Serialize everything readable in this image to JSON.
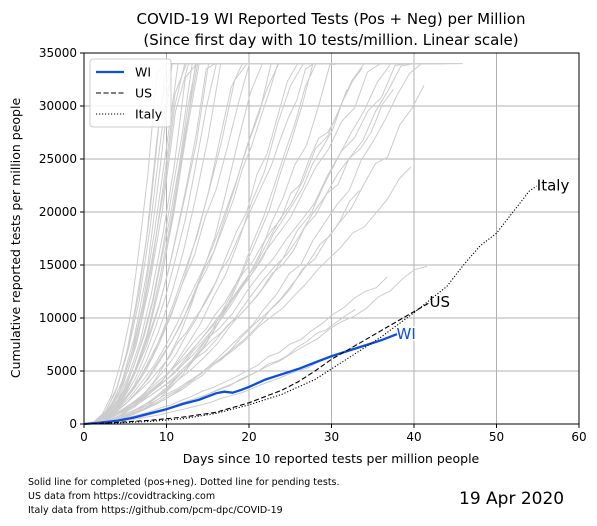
{
  "chart_data": {
    "type": "line",
    "title": [
      "COVID-19 WI Reported Tests (Pos + Neg) per Million",
      "(Since first day with 10 tests/million. Linear scale)"
    ],
    "xlabel": "Days since 10 reported tests per million people",
    "ylabel": "Cumulative reported tests per million people",
    "xlim": [
      0,
      60
    ],
    "ylim": [
      0,
      35000
    ],
    "xticks": [
      0,
      10,
      20,
      30,
      40,
      50,
      60
    ],
    "yticks": [
      0,
      5000,
      10000,
      15000,
      20000,
      25000,
      30000,
      35000
    ],
    "grid": true,
    "legend_position": "top-left",
    "series": [
      {
        "name": "WI",
        "style": "solid",
        "color": "#0b4fe0",
        "end_label": "WI",
        "x": [
          0,
          2,
          4,
          6,
          8,
          10,
          12,
          14,
          16,
          17,
          18,
          19,
          20,
          22,
          24,
          26,
          28,
          30,
          32,
          34,
          36,
          38
        ],
        "y": [
          0,
          120,
          300,
          600,
          1000,
          1400,
          1900,
          2300,
          2900,
          3050,
          2950,
          3200,
          3500,
          4200,
          4700,
          5200,
          5800,
          6400,
          6900,
          7400,
          7900,
          8500
        ]
      },
      {
        "name": "US",
        "style": "dashed",
        "color": "#000000",
        "end_label": "US",
        "x": [
          0,
          4,
          8,
          12,
          16,
          20,
          24,
          26,
          28,
          30,
          32,
          34,
          36,
          38,
          40,
          42
        ],
        "y": [
          0,
          150,
          350,
          650,
          1100,
          2000,
          3200,
          4000,
          5000,
          6100,
          7000,
          7900,
          8800,
          9700,
          10600,
          11500
        ]
      },
      {
        "name": "Italy",
        "style": "dotted",
        "color": "#000000",
        "end_label": "Italy",
        "x": [
          0,
          4,
          8,
          12,
          16,
          20,
          24,
          28,
          32,
          36,
          40,
          44,
          46,
          48,
          50,
          52,
          54,
          55
        ],
        "y": [
          0,
          100,
          250,
          500,
          1000,
          1800,
          2800,
          4200,
          6200,
          8200,
          10500,
          13000,
          15000,
          16800,
          18000,
          20000,
          22000,
          22500
        ]
      }
    ],
    "background_series_color": "#cccccc"
  },
  "footer": {
    "notes": [
      "Solid line for completed (pos+neg). Dotted line for pending tests.",
      "US data from https://covidtracking.com",
      "Italy data from https://github.com/pcm-dpc/COVID-19"
    ],
    "date": "19 Apr 2020"
  }
}
